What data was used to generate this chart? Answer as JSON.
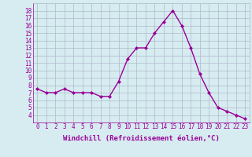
{
  "x": [
    0,
    1,
    2,
    3,
    4,
    5,
    6,
    7,
    8,
    9,
    10,
    11,
    12,
    13,
    14,
    15,
    16,
    17,
    18,
    19,
    20,
    21,
    22,
    23
  ],
  "y": [
    7.5,
    7.0,
    7.0,
    7.5,
    7.0,
    7.0,
    7.0,
    6.5,
    6.5,
    8.5,
    11.5,
    13.0,
    13.0,
    15.0,
    16.5,
    18.0,
    16.0,
    13.0,
    9.5,
    7.0,
    5.0,
    4.5,
    4.0,
    3.5
  ],
  "line_color": "#990099",
  "marker": "D",
  "marker_size": 2,
  "bg_color": "#d6ecf0",
  "grid_color": "#b0b8cc",
  "xlabel": "Windchill (Refroidissement éolien,°C)",
  "xlim": [
    -0.5,
    23.5
  ],
  "ylim": [
    3.0,
    19.0
  ],
  "yticks": [
    4,
    5,
    6,
    7,
    8,
    9,
    10,
    11,
    12,
    13,
    14,
    15,
    16,
    17,
    18
  ],
  "xticks": [
    0,
    1,
    2,
    3,
    4,
    5,
    6,
    7,
    8,
    9,
    10,
    11,
    12,
    13,
    14,
    15,
    16,
    17,
    18,
    19,
    20,
    21,
    22,
    23
  ],
  "tick_fontsize": 5.5,
  "label_fontsize": 6.5
}
